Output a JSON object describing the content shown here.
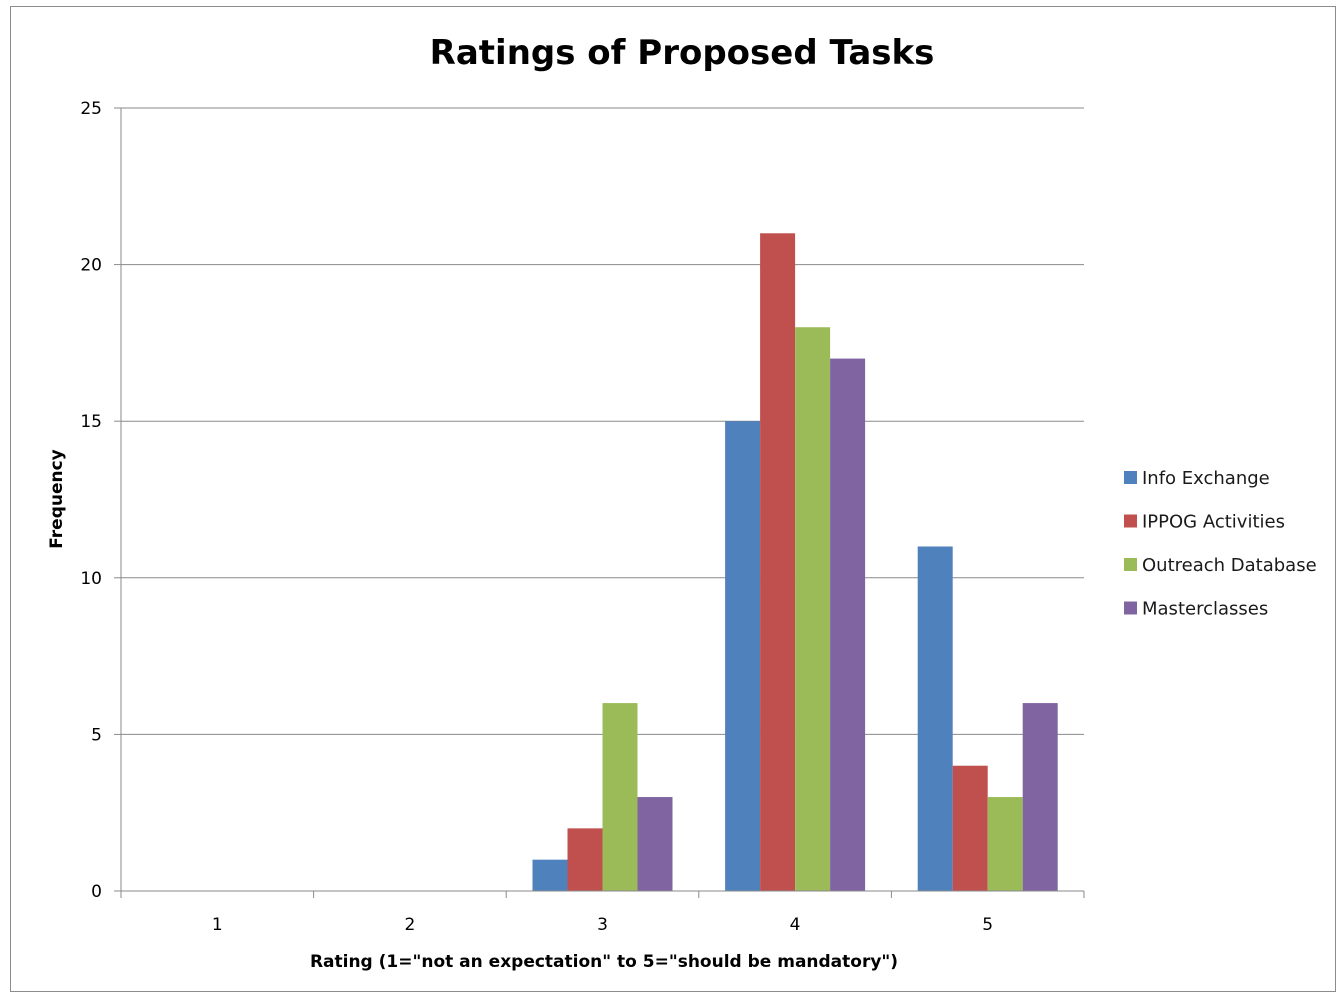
{
  "chart_data": {
    "type": "bar",
    "title": "Ratings of Proposed Tasks",
    "xlabel": "Rating (1=\"not an expectation\" to 5=\"should be mandatory\")",
    "ylabel": "Frequency",
    "categories": [
      "1",
      "2",
      "3",
      "4",
      "5"
    ],
    "ylim": [
      0,
      25
    ],
    "yticks": [
      "0",
      "5",
      "10",
      "15",
      "20",
      "25"
    ],
    "ytick_values": [
      0,
      5,
      10,
      15,
      20,
      25
    ],
    "grid": true,
    "legend_position": "right",
    "series": [
      {
        "name": "Info Exchange",
        "color": "#4f81bd",
        "values": [
          0,
          0,
          1,
          15,
          11
        ]
      },
      {
        "name": "IPPOG Activities",
        "color": "#c0504d",
        "values": [
          0,
          0,
          2,
          21,
          4
        ]
      },
      {
        "name": "Outreach Database",
        "color": "#9bbb59",
        "values": [
          0,
          0,
          6,
          18,
          3
        ]
      },
      {
        "name": "Masterclasses",
        "color": "#8064a2",
        "values": [
          0,
          0,
          3,
          17,
          6
        ]
      }
    ]
  }
}
